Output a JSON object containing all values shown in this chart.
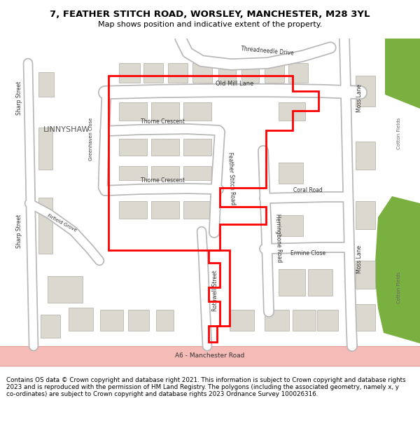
{
  "title_line1": "7, FEATHER STITCH ROAD, WORSLEY, MANCHESTER, M28 3YL",
  "title_line2": "Map shows position and indicative extent of the property.",
  "footer": "Contains OS data © Crown copyright and database right 2021. This information is subject to Crown copyright and database rights 2023 and is reproduced with the permission of HM Land Registry. The polygons (including the associated geometry, namely x, y co-ordinates) are subject to Crown copyright and database rights 2023 Ordnance Survey 100026316.",
  "bg_map": "#f0ede6",
  "road_fc": "#ffffff",
  "road_ec": "#b8b8b8",
  "a_road_fc": "#f5bbb6",
  "a_road_ec": "#d49090",
  "green1": "#7ab040",
  "building_fc": "#dbd8d0",
  "building_ec": "#b0aca4",
  "red_line": "#ff0000",
  "header_bg": "#ffffff",
  "footer_bg": "#ffffff",
  "text_dark": "#333333",
  "text_area": "#666666"
}
